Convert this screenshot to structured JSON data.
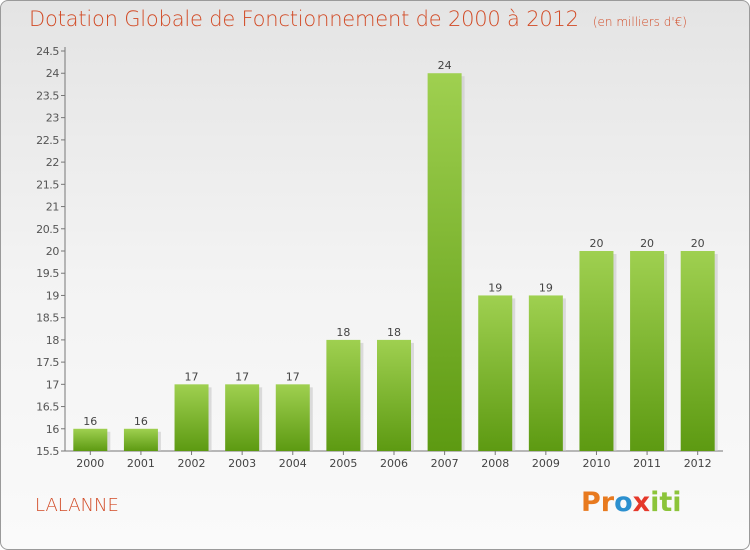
{
  "title": "Dotation Globale de Fonctionnement de 2000 à 2012",
  "unit_note": "(en milliers d'€)",
  "commune": "LALANNE",
  "logo": {
    "text": "Proxiti",
    "parts": [
      "Pr",
      "o",
      "x",
      "iti"
    ],
    "colors": [
      "#e87a1f",
      "#2c90cf",
      "#e5382a",
      "#8cc43a"
    ]
  },
  "colors": {
    "bar_top": "#9fd050",
    "bar_bottom": "#5d9a12",
    "title": "#d24b26",
    "axis": "#555555"
  },
  "chart_data": {
    "type": "bar",
    "categories": [
      "2000",
      "2001",
      "2002",
      "2003",
      "2004",
      "2005",
      "2006",
      "2007",
      "2008",
      "2009",
      "2010",
      "2011",
      "2012"
    ],
    "values": [
      16,
      16,
      17,
      17,
      17,
      18,
      18,
      24,
      19,
      19,
      20,
      20,
      20
    ],
    "labels": [
      "16",
      "16",
      "17",
      "17",
      "17",
      "18",
      "18",
      "24",
      "19",
      "19",
      "20",
      "20",
      "20"
    ],
    "title": "Dotation Globale de Fonctionnement de 2000 à 2012",
    "xlabel": "",
    "ylabel": "",
    "ylim": [
      15.5,
      24.5
    ],
    "yticks": [
      "15.5",
      "16",
      "16.5",
      "17",
      "17.5",
      "18",
      "18.5",
      "19",
      "19.5",
      "20",
      "20.5",
      "21",
      "21.5",
      "22",
      "22.5",
      "23",
      "23.5",
      "24",
      "24.5"
    ],
    "grid": false,
    "legend": "none"
  }
}
